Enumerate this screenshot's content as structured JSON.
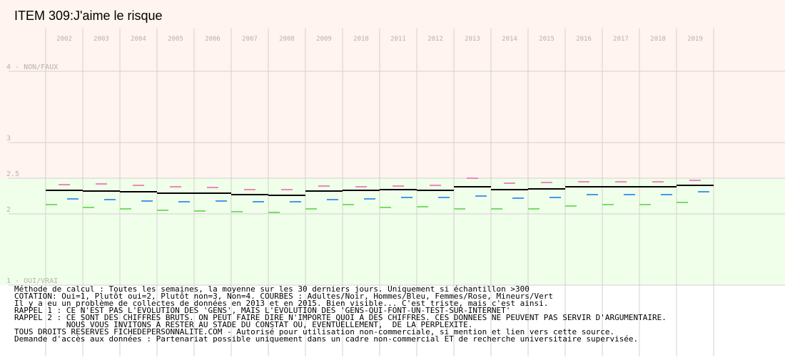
{
  "title": "ITEM 309:J'aime le risque",
  "chart_data": {
    "type": "line",
    "title": "ITEM 309:J'aime le risque",
    "x": [
      "2002",
      "2003",
      "2004",
      "2005",
      "2006",
      "2007",
      "2008",
      "2009",
      "2010",
      "2011",
      "2012",
      "2013",
      "2014",
      "2015",
      "2016",
      "2017",
      "2018",
      "2019"
    ],
    "ylim": [
      1,
      4
    ],
    "yticks": [
      {
        "value": 4,
        "label": "4 - NON/FAUX"
      },
      {
        "value": 3,
        "label": "3"
      },
      {
        "value": 2.5,
        "label": "2.5"
      },
      {
        "value": 2,
        "label": "2"
      },
      {
        "value": 1,
        "label": "1 - OUI/VRAI"
      }
    ],
    "grid": true,
    "series": [
      {
        "name": "Adultes",
        "color": "#000000",
        "values": [
          2.33,
          2.32,
          2.31,
          2.29,
          2.29,
          2.27,
          2.26,
          2.32,
          2.33,
          2.34,
          2.33,
          2.38,
          2.34,
          2.35,
          2.38,
          2.38,
          2.38,
          2.4
        ]
      },
      {
        "name": "Femmes",
        "color": "#ee88bb",
        "values": [
          2.41,
          2.42,
          2.4,
          2.38,
          2.37,
          2.34,
          2.34,
          2.39,
          2.38,
          2.39,
          2.4,
          2.5,
          2.43,
          2.44,
          2.45,
          2.45,
          2.45,
          2.47
        ]
      },
      {
        "name": "Hommes",
        "color": "#4499ee",
        "values": [
          2.21,
          2.2,
          2.18,
          2.17,
          2.18,
          2.17,
          2.17,
          2.2,
          2.21,
          2.23,
          2.23,
          2.25,
          2.22,
          2.23,
          2.27,
          2.27,
          2.27,
          2.31
        ]
      },
      {
        "name": "Mineurs",
        "color": "#77dd66",
        "values": [
          2.13,
          2.09,
          2.07,
          2.05,
          2.04,
          2.03,
          2.02,
          2.07,
          2.13,
          2.09,
          2.1,
          2.07,
          2.07,
          2.07,
          2.11,
          2.13,
          2.13,
          2.16
        ]
      }
    ],
    "zones": [
      {
        "from": 2.5,
        "to": 4,
        "color": "#fff4ef"
      },
      {
        "from": 1,
        "to": 2.5,
        "color": "#efffea"
      }
    ]
  },
  "notes": [
    "Méthode de calcul : Toutes les semaines, la moyenne sur les 30 derniers jours. Uniquement si échantillon >300",
    "COTATION: Oui=1, Plutôt oui=2, Plutôt non=3, Non=4. COURBES : Adultes/Noir, Hommes/Bleu, Femmes/Rose, Mineurs/Vert",
    "Il y a eu un problème de collectes de données en 2013 et en 2015. Bien visible... C'est triste, mais c'est ainsi.",
    "RAPPEL 1 : CE N'EST PAS L'EVOLUTION DES 'GENS', MAIS L'EVOLUTION DES 'GENS-QUI-FONT-UN-TEST-SUR-INTERNET'",
    "RAPPEL 2 : CE SONT DES CHIFFRES BRUTS. ON PEUT FAIRE DIRE N'IMPORTE QUOI A DES CHIFFRES. CES DONNEES NE PEUVENT PAS SERVIR D'ARGUMENTAIRE.",
    "           NOUS VOUS INVITONS A RESTER AU STADE DU CONSTAT OU, EVENTUELLEMENT,  DE LA PERPLEXITE.",
    "TOUS DROITS RESERVES FICHEDEPERSONNALITE.COM - Autorisé pour utilisation non-commerciale, si mention et lien vers cette source.",
    "Demande d'accès aux données : Partenariat possible uniquement dans un cadre non-commercial ET de recherche universitaire supervisée."
  ]
}
